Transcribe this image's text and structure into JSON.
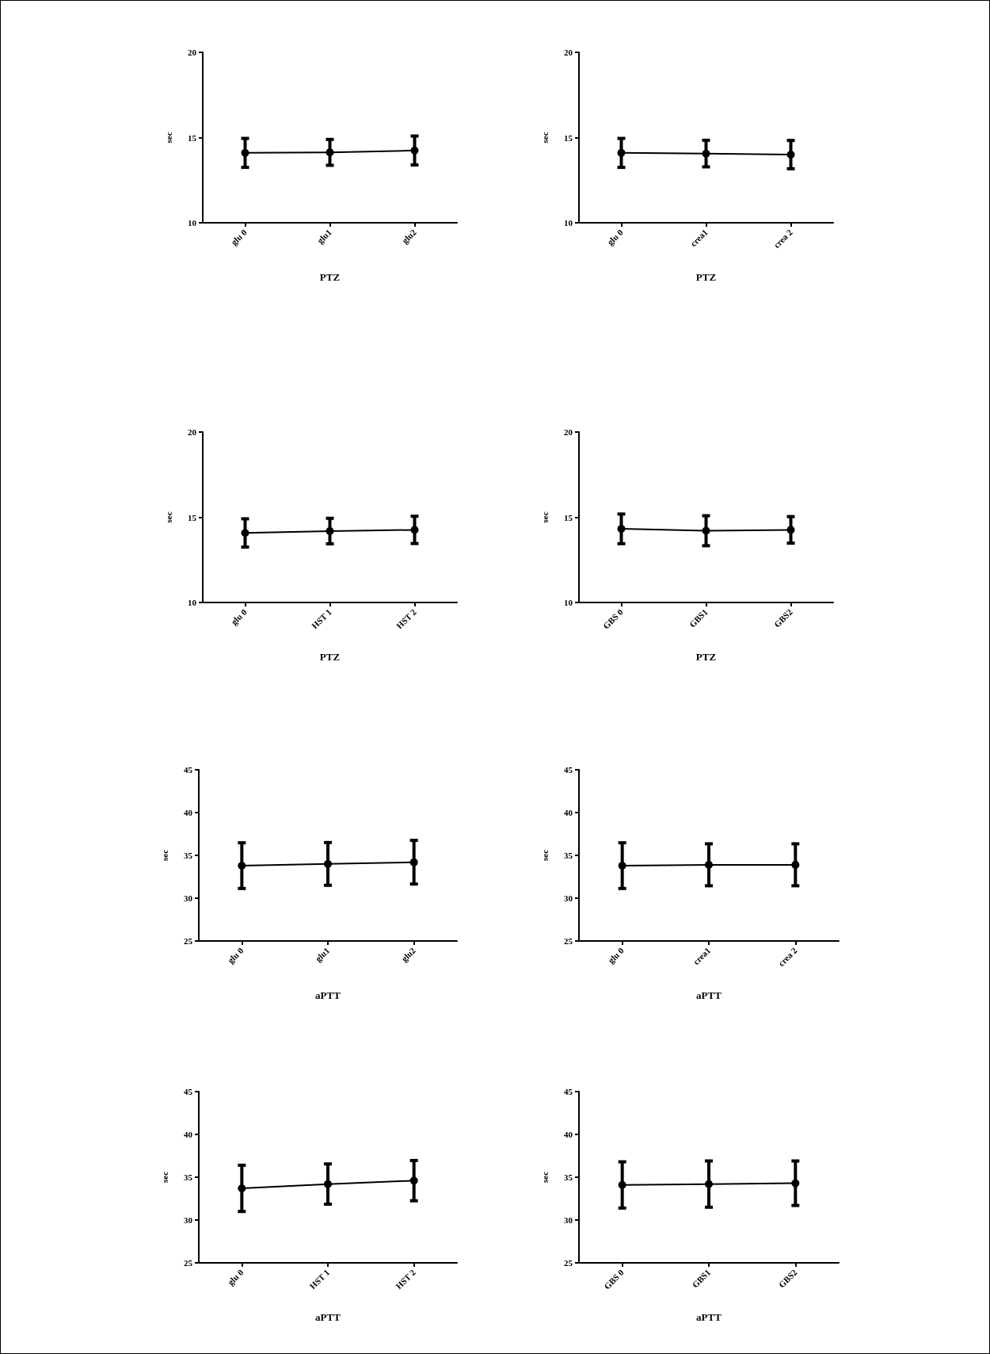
{
  "chart_data": [
    {
      "type": "line",
      "categories": [
        "glu 0",
        "glu1",
        "glu2"
      ],
      "series": [
        {
          "color": "#000000",
          "values": [
            14.1,
            14.13,
            14.24
          ],
          "errors": [
            0.85,
            0.76,
            0.85
          ]
        }
      ],
      "ylim": [
        10,
        20
      ],
      "yticks": [
        10,
        15,
        20
      ],
      "xlabel": "PTZ",
      "ylabel": "sec",
      "marker": "circle",
      "grid": false
    },
    {
      "type": "line",
      "categories": [
        "glu 0",
        "crea1",
        "crea 2"
      ],
      "series": [
        {
          "color": "#000000",
          "values": [
            14.1,
            14.06,
            14.0
          ],
          "errors": [
            0.85,
            0.78,
            0.83
          ]
        }
      ],
      "ylim": [
        10,
        20
      ],
      "yticks": [
        10,
        15,
        20
      ],
      "xlabel": "PTZ",
      "ylabel": "sec",
      "marker": "circle",
      "grid": false
    },
    {
      "type": "line",
      "categories": [
        "glu 0",
        "HST 1",
        "HST 2"
      ],
      "series": [
        {
          "color": "#000000",
          "values": [
            14.08,
            14.19,
            14.26
          ],
          "errors": [
            0.83,
            0.75,
            0.8
          ]
        }
      ],
      "ylim": [
        10,
        20
      ],
      "yticks": [
        10,
        15,
        20
      ],
      "xlabel": "PTZ",
      "ylabel": "sec",
      "marker": "circle",
      "grid": false
    },
    {
      "type": "line",
      "categories": [
        "GBS 0",
        "GBS1",
        "GBS2"
      ],
      "series": [
        {
          "color": "#000000",
          "values": [
            14.32,
            14.21,
            14.26
          ],
          "errors": [
            0.87,
            0.88,
            0.78
          ]
        }
      ],
      "ylim": [
        10,
        20
      ],
      "yticks": [
        10,
        15,
        20
      ],
      "xlabel": "PTZ",
      "ylabel": "sec",
      "marker": "circle",
      "grid": false
    },
    {
      "type": "line",
      "categories": [
        "glu 0",
        "glu1",
        "glu2"
      ],
      "series": [
        {
          "color": "#000000",
          "values": [
            33.8,
            34.0,
            34.2
          ],
          "errors": [
            2.67,
            2.5,
            2.55
          ]
        }
      ],
      "ylim": [
        25,
        45
      ],
      "yticks": [
        25,
        30,
        35,
        40,
        45
      ],
      "xlabel": "aPTT",
      "ylabel": "sec",
      "marker": "circle",
      "grid": false
    },
    {
      "type": "line",
      "categories": [
        "glu 0",
        "crea1",
        "crea 2"
      ],
      "series": [
        {
          "color": "#000000",
          "values": [
            33.8,
            33.9,
            33.9
          ],
          "errors": [
            2.67,
            2.45,
            2.45
          ]
        }
      ],
      "ylim": [
        25,
        45
      ],
      "yticks": [
        25,
        30,
        35,
        40,
        45
      ],
      "xlabel": "aPTT",
      "ylabel": "sec",
      "marker": "circle",
      "grid": false
    },
    {
      "type": "line",
      "categories": [
        "glu 0",
        "HST 1",
        "HST 2"
      ],
      "series": [
        {
          "color": "#000000",
          "values": [
            33.7,
            34.2,
            34.6
          ],
          "errors": [
            2.7,
            2.35,
            2.35
          ]
        }
      ],
      "ylim": [
        25,
        45
      ],
      "yticks": [
        25,
        30,
        35,
        40,
        45
      ],
      "xlabel": "aPTT",
      "ylabel": "sec",
      "marker": "circle",
      "grid": false
    },
    {
      "type": "line",
      "categories": [
        "GBS 0",
        "GBS1",
        "GBS2"
      ],
      "series": [
        {
          "color": "#000000",
          "values": [
            34.1,
            34.2,
            34.3
          ],
          "errors": [
            2.7,
            2.7,
            2.6
          ]
        }
      ],
      "ylim": [
        25,
        45
      ],
      "yticks": [
        25,
        30,
        35,
        40,
        45
      ],
      "xlabel": "aPTT",
      "ylabel": "sec",
      "marker": "circle",
      "grid": false
    }
  ]
}
